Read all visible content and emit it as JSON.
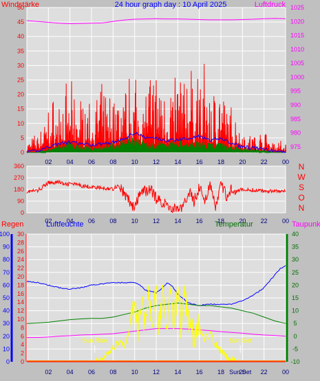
{
  "colors": {
    "background": "#c0c0c0",
    "plot_bg": "#dedede",
    "grid": "#ffffff",
    "red": "#ff0000",
    "magenta": "#ff00ff",
    "blue": "#0000ff",
    "green": "#008000",
    "darkgreen": "#007000",
    "yellow": "#ffff00",
    "navy": "#000080",
    "orange": "#ff7a00"
  },
  "top_panel": {
    "title": "24 hour graph day : 10 April 2025",
    "left_label": "Windstärke",
    "right_label": "Luftdruck"
  },
  "bottom_panel": {
    "left_label_1": "Regen",
    "left_label_2": "Luftfeuchte",
    "right_label_1": "Temperatur",
    "right_label_2": "Taupunkt",
    "sun_rise_label": "Sun Rise",
    "sun_set_label": "Sun Set",
    "sun_set_bottom_label": "Sun Set"
  },
  "chart_data": [
    {
      "type": "line",
      "panel": "wind_and_pressure",
      "title": "24 hour graph day : 10 April 2025",
      "ylabel": "Windstärke",
      "ylim": [
        0,
        50
      ],
      "y_ticks": [
        0,
        5,
        10,
        15,
        20,
        25,
        30,
        35,
        40,
        45,
        50
      ],
      "y2label": "Luftdruck",
      "y2lim": [
        973,
        1025
      ],
      "y2_ticks": [
        975,
        980,
        985,
        990,
        995,
        1000,
        1005,
        1010,
        1015,
        1020,
        1025
      ],
      "x_ticks": [
        "02",
        "04",
        "06",
        "08",
        "10",
        "12",
        "14",
        "16",
        "18",
        "20",
        "22",
        "00"
      ],
      "series": [
        {
          "name": "Luftdruck",
          "axis": "right",
          "color": "#ff00ff",
          "x": [
            0,
            1,
            2,
            3,
            4,
            5,
            6,
            7,
            8,
            9,
            10,
            11,
            12,
            13,
            14,
            15,
            16,
            17,
            18,
            19,
            20,
            21,
            22,
            23,
            24
          ],
          "y": [
            1020.3,
            1020.0,
            1019.7,
            1019.4,
            1019.2,
            1019.3,
            1019.4,
            1019.5,
            1020.0,
            1020.5,
            1020.8,
            1020.9,
            1021.0,
            1020.9,
            1020.9,
            1020.8,
            1020.7,
            1020.6,
            1020.6,
            1020.6,
            1020.7,
            1020.8,
            1021.0,
            1021.1,
            1021.0
          ]
        },
        {
          "name": "Wind gust (red)",
          "axis": "left",
          "color": "#ff0000",
          "x": [
            0,
            1,
            2,
            3,
            4,
            5,
            6,
            7,
            8,
            9,
            10,
            11,
            12,
            13,
            14,
            15,
            16,
            17,
            18,
            19,
            20,
            21,
            22,
            23,
            24
          ],
          "y": [
            4,
            6,
            15,
            19,
            20,
            18,
            16,
            20,
            19,
            22,
            26,
            25,
            27,
            22,
            27,
            25,
            28,
            23,
            21,
            14,
            8,
            6,
            7,
            5,
            3
          ]
        },
        {
          "name": "Wind average (blue)",
          "axis": "left",
          "color": "#0000ff",
          "x": [
            0,
            1,
            2,
            3,
            4,
            5,
            6,
            7,
            8,
            9,
            10,
            11,
            12,
            13,
            14,
            15,
            16,
            17,
            18,
            19,
            20,
            21,
            22,
            23,
            24
          ],
          "y": [
            0,
            0.5,
            2,
            3,
            3.5,
            3,
            2.5,
            3,
            3.5,
            4.5,
            7,
            5,
            5,
            4,
            4.5,
            5,
            5.5,
            4,
            5,
            3,
            2,
            1.5,
            1,
            0.5,
            0
          ]
        },
        {
          "name": "Wind (green)",
          "axis": "left",
          "color": "#008000",
          "x": [
            0,
            1,
            2,
            3,
            4,
            5,
            6,
            7,
            8,
            9,
            10,
            11,
            12,
            13,
            14,
            15,
            16,
            17,
            18,
            19,
            20,
            21,
            22,
            23,
            24
          ],
          "y": [
            0,
            0,
            1,
            2,
            3,
            2,
            1.5,
            2,
            2.5,
            3.5,
            4,
            3,
            3,
            2.5,
            3.5,
            3,
            3,
            3,
            2.5,
            2,
            1.5,
            1,
            0.5,
            0,
            0
          ]
        }
      ]
    },
    {
      "type": "line",
      "panel": "wind_direction",
      "ylim": [
        0,
        360
      ],
      "y_ticks": [
        0,
        90,
        180,
        270,
        360
      ],
      "right_labels": [
        "N",
        "W",
        "S",
        "O",
        "N"
      ],
      "x_ticks": [
        "02",
        "04",
        "06",
        "08",
        "10",
        "12",
        "14",
        "16",
        "18",
        "20",
        "22",
        "00"
      ],
      "series": [
        {
          "name": "Wind direction",
          "color": "#ff0000",
          "x": [
            0,
            1,
            2,
            3,
            3.5,
            4,
            5,
            6,
            7,
            8,
            8.5,
            9,
            9.5,
            10,
            10.5,
            11,
            11.5,
            12,
            13,
            13.5,
            14,
            14.5,
            15,
            15.5,
            16,
            16.5,
            17,
            17.5,
            18,
            18.5,
            19,
            20,
            21,
            22,
            23,
            24
          ],
          "y": [
            165,
            170,
            230,
            240,
            215,
            225,
            210,
            200,
            190,
            185,
            215,
            150,
            90,
            30,
            150,
            170,
            180,
            110,
            60,
            30,
            40,
            30,
            170,
            90,
            200,
            100,
            210,
            40,
            220,
            130,
            185,
            175,
            175,
            170,
            170,
            165
          ]
        }
      ]
    },
    {
      "type": "line",
      "panel": "rain_humidity_temperature",
      "ylabel": "Luftfeuchte",
      "ylim": [
        0,
        100
      ],
      "y_ticks": [
        0,
        10,
        20,
        30,
        40,
        50,
        60,
        70,
        80,
        90,
        100
      ],
      "rain_label": "Regen",
      "rain_lim": [
        0,
        30
      ],
      "rain_ticks": [
        0,
        2,
        4,
        6,
        8,
        10,
        12,
        14,
        16,
        18,
        20,
        22,
        24,
        26,
        28,
        30
      ],
      "y2label": "Temperatur",
      "y2lim": [
        -10,
        40
      ],
      "y2_ticks": [
        -10,
        -5,
        0,
        5,
        10,
        15,
        20,
        25,
        30,
        35,
        40
      ],
      "dewpoint_label": "Taupunkt",
      "x_ticks": [
        "02",
        "04",
        "06",
        "08",
        "10",
        "12",
        "14",
        "16",
        "18",
        "20",
        "22",
        "00"
      ],
      "sunrise_hour": 6.3,
      "sunset_hour": 19.8,
      "series": [
        {
          "name": "Luftfeuchte",
          "axis": "left",
          "color": "#0000ff",
          "x": [
            0,
            1,
            2,
            3,
            4,
            5,
            6,
            7,
            8,
            9,
            10,
            10.5,
            11,
            11.5,
            12,
            12.5,
            13,
            13.5,
            14,
            15,
            16,
            17,
            18,
            19,
            20,
            21,
            22,
            23,
            23.5,
            24
          ],
          "y": [
            63,
            62,
            60,
            58,
            57,
            58,
            60,
            61,
            62,
            62,
            62,
            60,
            56,
            55,
            54,
            57,
            62,
            59,
            53,
            46,
            44,
            45,
            45,
            45,
            48,
            52,
            58,
            68,
            73,
            75
          ]
        },
        {
          "name": "Temperatur",
          "axis": "right",
          "color": "#008000",
          "x": [
            0,
            1,
            2,
            3,
            4,
            5,
            6,
            7,
            8,
            9,
            10,
            11,
            12,
            13,
            14,
            15,
            16,
            17,
            18,
            19,
            20,
            21,
            22,
            23,
            24
          ],
          "y": [
            5,
            5.2,
            5.5,
            6,
            6.5,
            6.8,
            7,
            7,
            7.5,
            8.5,
            9.5,
            11,
            12,
            12.5,
            13,
            12.5,
            12,
            12,
            11.5,
            11,
            10,
            9,
            7.5,
            6,
            5
          ]
        },
        {
          "name": "Taupunkt",
          "axis": "right",
          "color": "#ff00ff",
          "x": [
            0,
            1,
            2,
            3,
            4,
            5,
            6,
            7,
            8,
            9,
            10,
            11,
            12,
            13,
            14,
            15,
            16,
            17,
            18,
            19,
            20,
            21,
            22,
            23,
            24
          ],
          "y": [
            -0.5,
            -0.5,
            -0.3,
            0,
            0.2,
            0.5,
            0.6,
            0.8,
            1,
            1.5,
            2,
            2.5,
            3,
            3,
            3,
            2.8,
            2.5,
            2.2,
            1.8,
            1.5,
            1.2,
            0.8,
            0.5,
            0.3,
            0
          ]
        },
        {
          "name": "Solar (yellow)",
          "axis": "right",
          "color": "#ffff00",
          "x": [
            6.3,
            7,
            7.5,
            8,
            8.5,
            9,
            9.5,
            10,
            10.3,
            10.6,
            11,
            11.3,
            11.6,
            12,
            12.3,
            12.6,
            13,
            13.3,
            13.6,
            14,
            14.3,
            14.6,
            15,
            15.5,
            16,
            16.5,
            17,
            17.5,
            18,
            18.5,
            19,
            19.5,
            19.8
          ],
          "y": [
            -10,
            -9,
            -7,
            -5,
            -2,
            -4,
            1,
            12,
            2,
            14,
            4,
            16,
            6,
            21,
            3,
            18,
            5,
            22,
            2,
            20,
            4,
            15,
            6,
            1,
            3,
            -1,
            1,
            -3,
            -6,
            -8,
            -9,
            -10,
            -10
          ]
        },
        {
          "name": "Regen",
          "axis": "rain",
          "color": "#ff0000",
          "x": [
            0,
            24
          ],
          "y": [
            0,
            0
          ]
        }
      ]
    }
  ]
}
